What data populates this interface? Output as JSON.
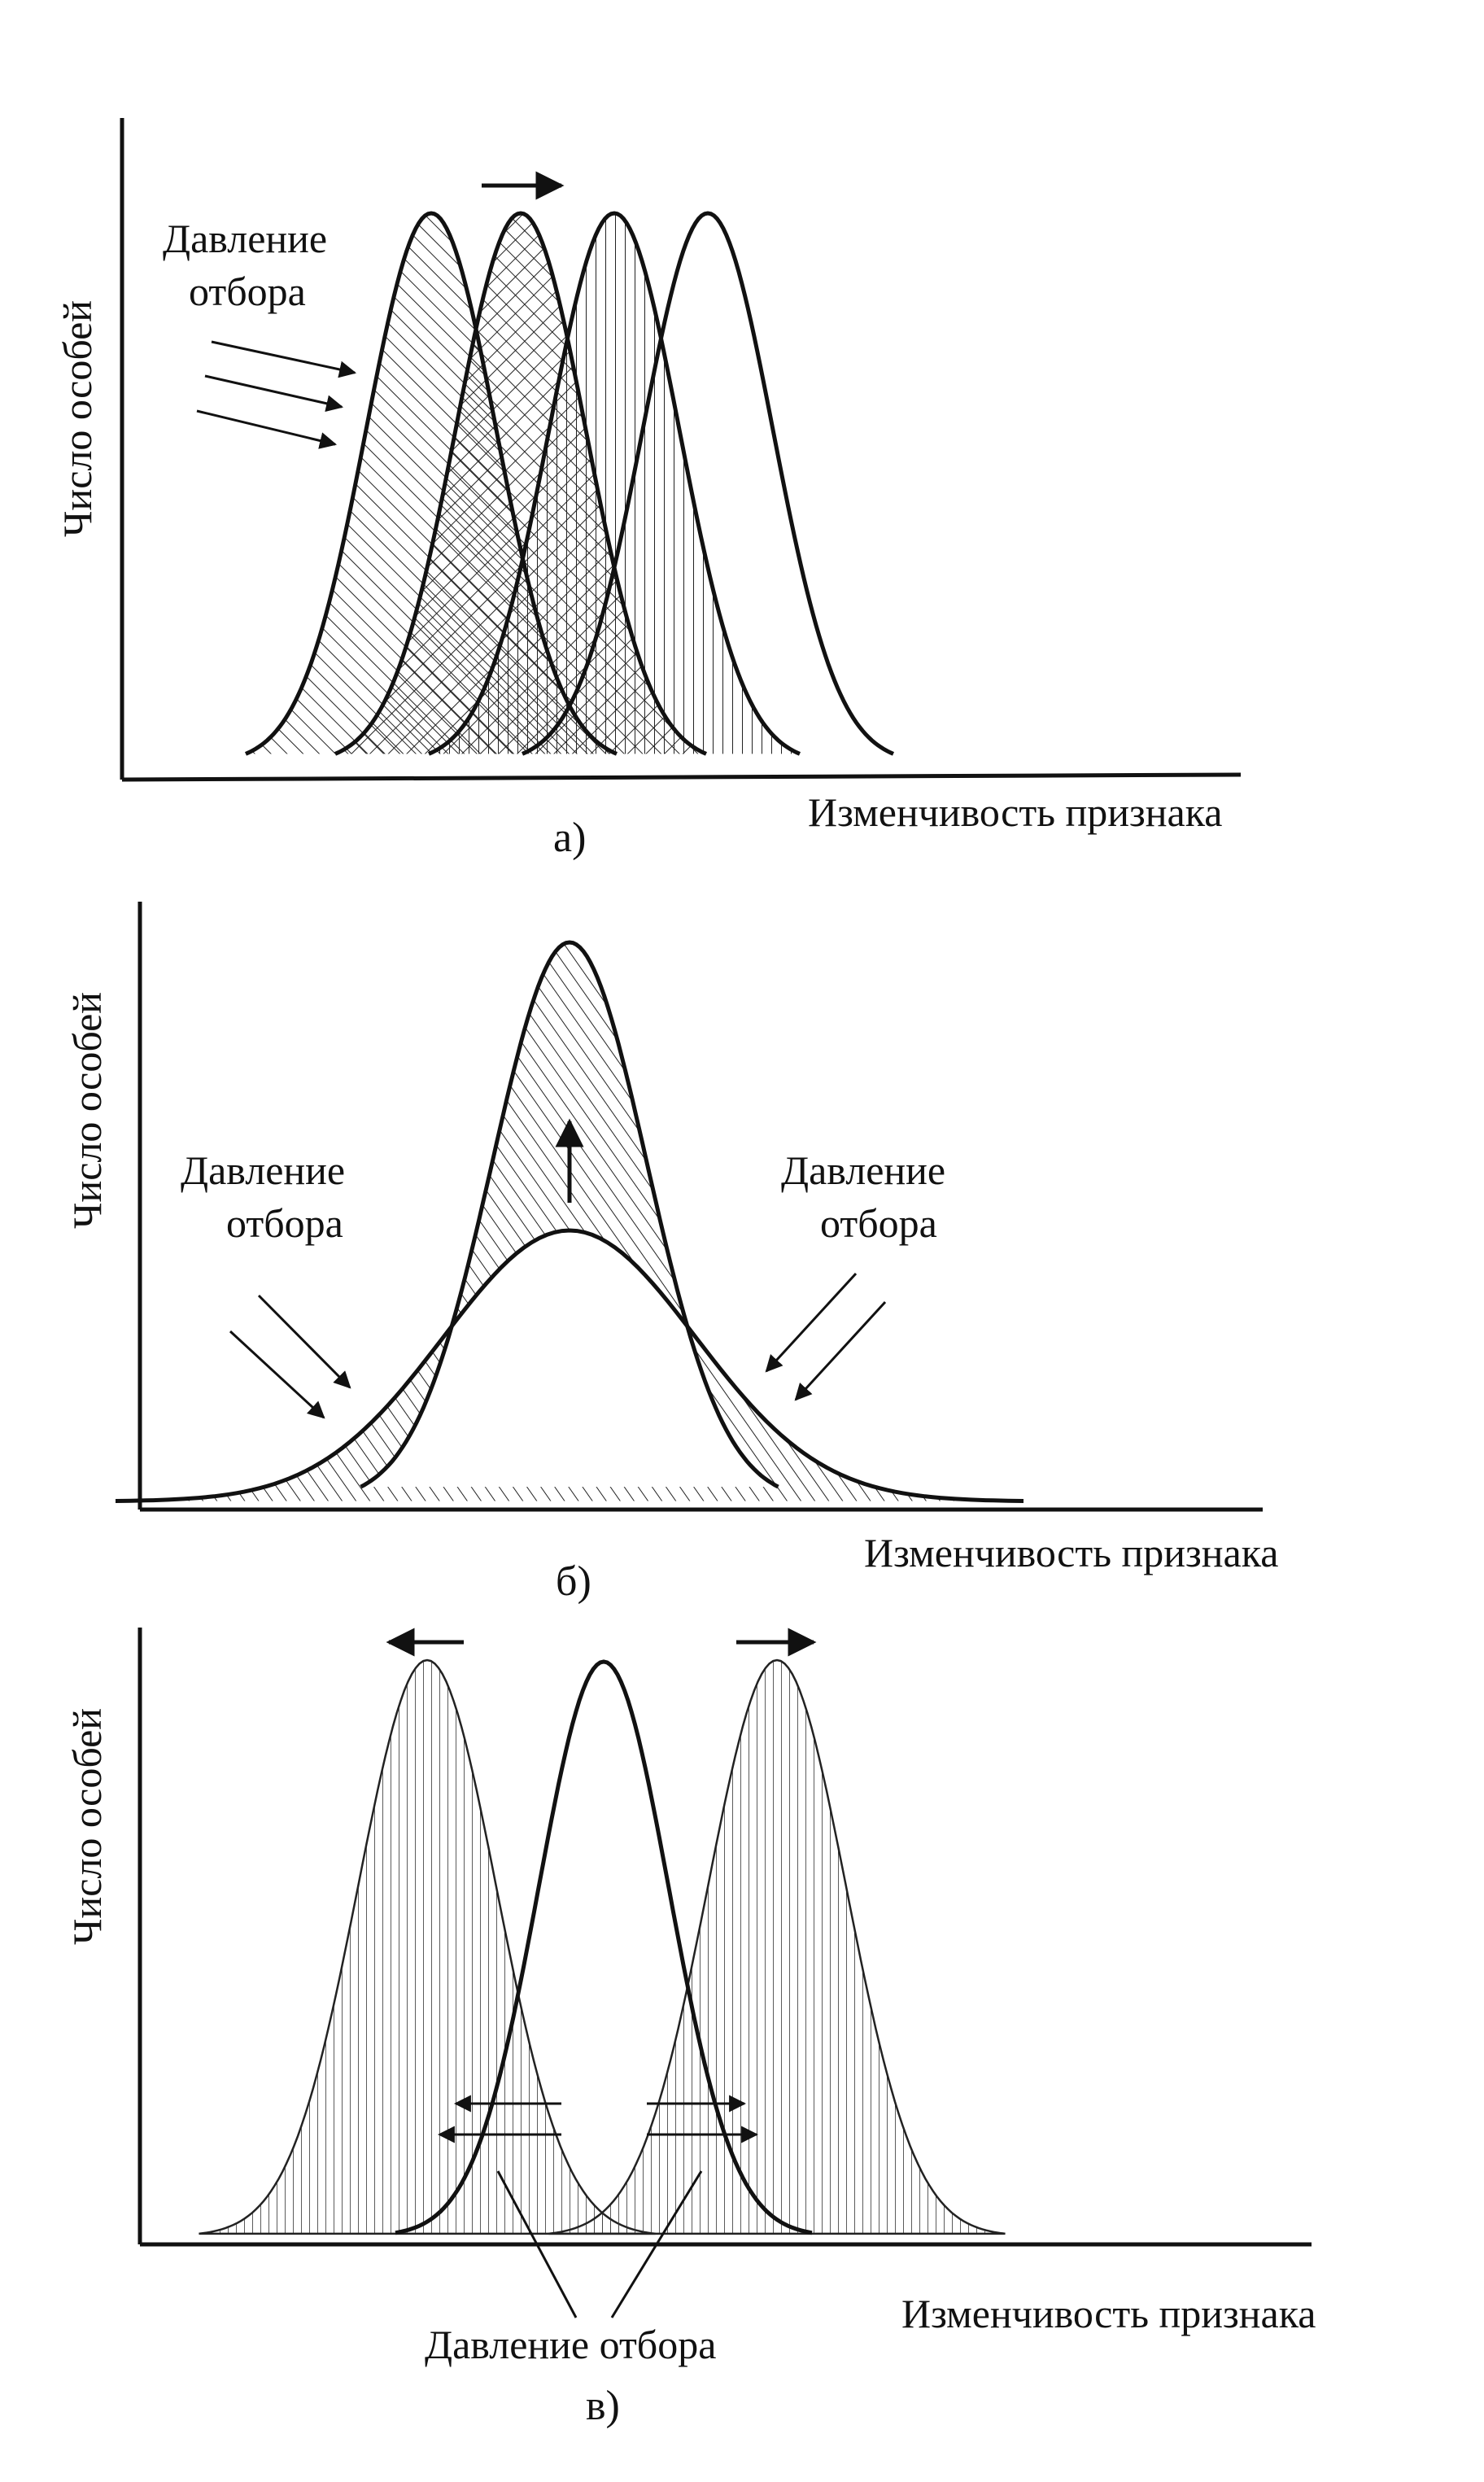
{
  "colors": {
    "ink": "#111111",
    "paper": "#ffffff"
  },
  "panels": [
    {
      "id": "a",
      "panel_label": "а)",
      "y_axis_label": "Число особей",
      "x_axis_label": "Изменчивость признака",
      "pressure_label_line1": "Давление",
      "pressure_label_line2": "отбора",
      "shift_direction": "right"
    },
    {
      "id": "b",
      "panel_label": "б)",
      "y_axis_label": "Число особей",
      "x_axis_label": "Изменчивость признака",
      "pressure_left_line1": "Давление",
      "pressure_left_line2": "отбора",
      "pressure_right_line1": "Давление",
      "pressure_right_line2": "отбора",
      "shift_direction": "up"
    },
    {
      "id": "c",
      "panel_label": "в)",
      "y_axis_label": "Число особей",
      "x_axis_label": "Изменчивость признака",
      "pressure_label": "Давление отбора",
      "shift_direction": "both-sides"
    }
  ]
}
